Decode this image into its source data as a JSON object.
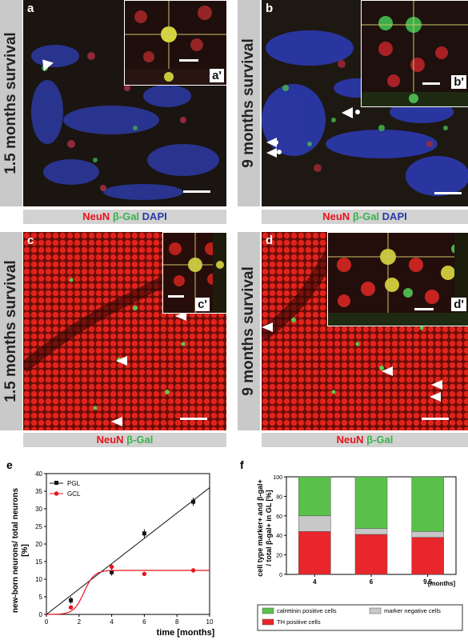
{
  "panels": {
    "a": {
      "label": "a",
      "inset_label": "a'",
      "survival": "1.5 months survival"
    },
    "b": {
      "label": "b",
      "inset_label": "b'",
      "survival": "9 months survival"
    },
    "c": {
      "label": "c",
      "inset_label": "c'",
      "survival": "1.5 months survival"
    },
    "d": {
      "label": "d",
      "inset_label": "d'",
      "survival": "9 months survival"
    },
    "e": {
      "label": "e"
    },
    "f": {
      "label": "f"
    }
  },
  "captions": {
    "neun": "NeuN",
    "bgal": "β-Gal",
    "dapi": "DAPI"
  },
  "colors": {
    "neun": "#e8131b",
    "bgal": "#37b34a",
    "dapi": "#2b3aa8",
    "sidebar": "#c9c9c9"
  },
  "chart_data": [
    {
      "type": "scatter",
      "panel": "e",
      "ylabel_line1": "new-born neurons/ total neurons",
      "ylabel_line2": "[%]",
      "xlabel": "time [months]",
      "xlim": [
        0,
        10
      ],
      "ylim": [
        0,
        40
      ],
      "xticks": [
        0,
        2,
        4,
        6,
        8,
        10
      ],
      "yticks": [
        0,
        5,
        10,
        15,
        20,
        25,
        30,
        35,
        40
      ],
      "legend_position": "top-left",
      "series": [
        {
          "name": "PGL",
          "color": "#111111",
          "marker": "square",
          "x": [
            1.5,
            4,
            6,
            9
          ],
          "y": [
            4,
            12,
            23,
            32
          ],
          "err": [
            1,
            1,
            1.2,
            1.2
          ],
          "fit": "linear",
          "fit_points": [
            [
              0,
              0
            ],
            [
              10,
              36
            ]
          ]
        },
        {
          "name": "GCL",
          "color": "#e8131b",
          "marker": "circle",
          "x": [
            1.5,
            4,
            6,
            9
          ],
          "y": [
            2,
            13.5,
            11.5,
            12.5
          ],
          "err": [
            0.5,
            1,
            0.6,
            0.6
          ],
          "fit": "sigmoid",
          "plateau": 12.5
        }
      ]
    },
    {
      "type": "bar",
      "panel": "f",
      "stacked": true,
      "ylabel_line1": "cell type marker+ and β-gal+",
      "ylabel_line2": "/ total β-gal+ in GL [%]",
      "categories": [
        "4",
        "6",
        "9.5"
      ],
      "x_unit": "[months]",
      "ylim": [
        0,
        100
      ],
      "yticks": [
        0,
        20,
        40,
        60,
        80,
        100
      ],
      "series": [
        {
          "name": "TH positive cells",
          "color": "#e8262c",
          "values": [
            44,
            41,
            38
          ]
        },
        {
          "name": "marker negative cells",
          "color": "#c8c8c8",
          "values": [
            16,
            6,
            6
          ]
        },
        {
          "name": "calretinin positive cells",
          "color": "#59c14a",
          "values": [
            40,
            53,
            56
          ]
        }
      ]
    }
  ]
}
